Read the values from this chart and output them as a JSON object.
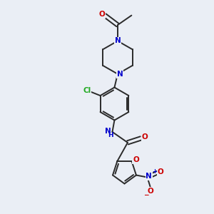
{
  "bg_color": "#eaeef5",
  "atom_colors": {
    "N": "#0000cc",
    "O": "#cc0000",
    "Cl": "#22aa22",
    "bond": "#2a2a2a"
  },
  "lw": 1.4,
  "figsize": [
    3.0,
    3.0
  ],
  "dpi": 100
}
